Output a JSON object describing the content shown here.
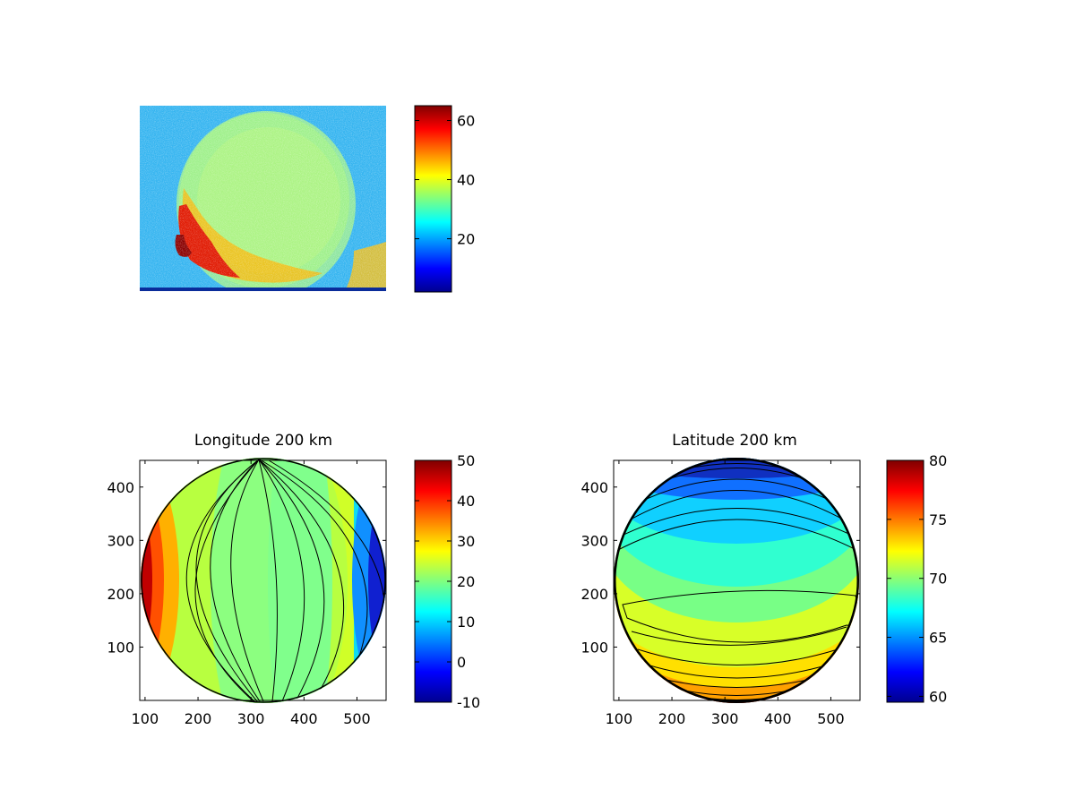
{
  "chart_data": [
    {
      "type": "heatmap",
      "panel": "image",
      "title": "",
      "xlabel": "",
      "ylabel": "",
      "axes_visible": false,
      "colormap": "jet",
      "colorbar": {
        "range": [
          2,
          65
        ],
        "ticks": [
          20,
          40,
          60
        ]
      },
      "description_values": {
        "background_level": 23,
        "disk_level": 34,
        "bright_limb_level": 62
      }
    },
    {
      "type": "contour",
      "panel": "longitude",
      "title": "Longitude 200 km",
      "xlabel": "",
      "ylabel": "",
      "xlim": [
        90,
        555
      ],
      "ylim": [
        0,
        450
      ],
      "xticks": [
        100,
        200,
        300,
        400,
        500
      ],
      "yticks": [
        100,
        200,
        300,
        400
      ],
      "disk_center": [
        325,
        225
      ],
      "disk_radius": 228,
      "colormap": "jet",
      "colorbar": {
        "range": [
          -10,
          50
        ],
        "ticks": [
          -10,
          0,
          10,
          20,
          30,
          40,
          50
        ]
      },
      "center_value": 20
    },
    {
      "type": "contour",
      "panel": "latitude",
      "title": "Latitude 200 km",
      "xlabel": "",
      "ylabel": "",
      "xlim": [
        90,
        555
      ],
      "ylim": [
        0,
        450
      ],
      "xticks": [
        100,
        200,
        300,
        400,
        500
      ],
      "yticks": [
        100,
        200,
        300,
        400
      ],
      "disk_center": [
        325,
        225
      ],
      "disk_radius": 228,
      "colormap": "jet",
      "colorbar": {
        "range": [
          59.5,
          80
        ],
        "ticks": [
          60,
          65,
          70,
          75,
          80
        ]
      },
      "center_value": 70
    }
  ]
}
